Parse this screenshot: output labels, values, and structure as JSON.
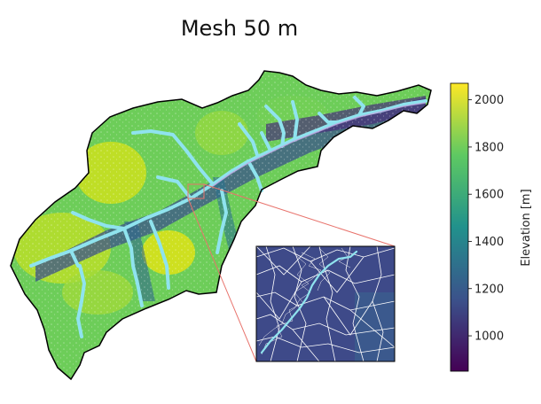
{
  "figure": {
    "title": "Mesh 50 m"
  },
  "colorbar": {
    "label": "Elevation [m]",
    "min": 850,
    "max": 2070,
    "ticks": [
      {
        "value": 2000,
        "label": "2000"
      },
      {
        "value": 1800,
        "label": "1800"
      },
      {
        "value": 1600,
        "label": "1600"
      },
      {
        "value": 1400,
        "label": "1400"
      },
      {
        "value": 1200,
        "label": "1200"
      },
      {
        "value": 1000,
        "label": "1000"
      }
    ],
    "colormap": [
      "#440154",
      "#3b528b",
      "#21918c",
      "#5ec962",
      "#fde725"
    ]
  },
  "colors": {
    "river": "#8fe3ee",
    "mesh_lines": "#ffffff",
    "boundary": "#000000",
    "zoom_lines": "#e8736c",
    "inset_fill": "#3e4a89"
  }
}
